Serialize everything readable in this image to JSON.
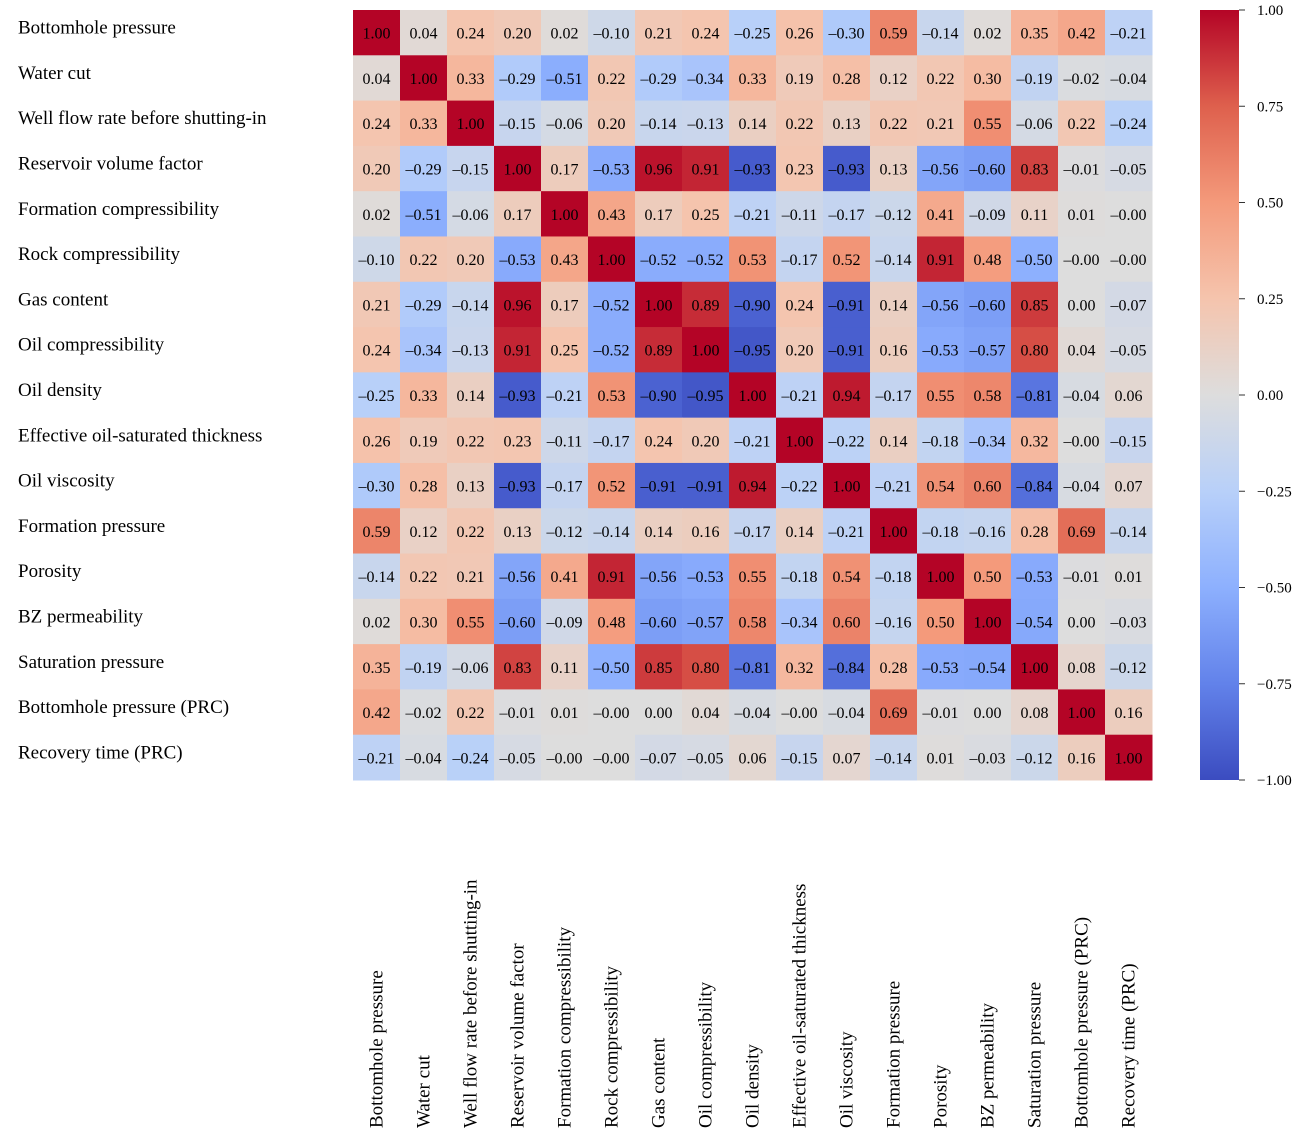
{
  "chart_data": {
    "type": "heatmap",
    "title": "",
    "labels": [
      "Bottomhole pressure",
      "Water cut",
      "Well flow rate before shutting-in",
      "Reservoir volume factor",
      "Formation compressibility",
      "Rock compressibility",
      "Gas content",
      "Oil compressibility",
      "Oil density",
      "Effective oil-saturated thickness",
      "Oil viscosity",
      "Formation pressure",
      "Porosity",
      "BZ permeability",
      "Saturation pressure",
      "Bottomhole pressure (PRC)",
      "Recovery time (PRC)"
    ],
    "matrix": [
      [
        1.0,
        0.04,
        0.24,
        0.2,
        0.02,
        -0.1,
        0.21,
        0.24,
        -0.25,
        0.26,
        -0.3,
        0.59,
        -0.14,
        0.02,
        0.35,
        0.42,
        -0.21
      ],
      [
        0.04,
        1.0,
        0.33,
        -0.29,
        -0.51,
        0.22,
        -0.29,
        -0.34,
        0.33,
        0.19,
        0.28,
        0.12,
        0.22,
        0.3,
        -0.19,
        -0.02,
        -0.04
      ],
      [
        0.24,
        0.33,
        1.0,
        -0.15,
        -0.06,
        0.2,
        -0.14,
        -0.13,
        0.14,
        0.22,
        0.13,
        0.22,
        0.21,
        0.55,
        -0.06,
        0.22,
        -0.24
      ],
      [
        0.2,
        -0.29,
        -0.15,
        1.0,
        0.17,
        -0.53,
        0.96,
        0.91,
        -0.93,
        0.23,
        -0.93,
        0.13,
        -0.56,
        -0.6,
        0.83,
        -0.01,
        -0.05
      ],
      [
        0.02,
        -0.51,
        -0.06,
        0.17,
        1.0,
        0.43,
        0.17,
        0.25,
        -0.21,
        -0.11,
        -0.17,
        -0.12,
        0.41,
        -0.09,
        0.11,
        0.01,
        -0.0
      ],
      [
        -0.1,
        0.22,
        0.2,
        -0.53,
        0.43,
        1.0,
        -0.52,
        -0.52,
        0.53,
        -0.17,
        0.52,
        -0.14,
        0.91,
        0.48,
        -0.5,
        -0.0,
        -0.0
      ],
      [
        0.21,
        -0.29,
        -0.14,
        0.96,
        0.17,
        -0.52,
        1.0,
        0.89,
        -0.9,
        0.24,
        -0.91,
        0.14,
        -0.56,
        -0.6,
        0.85,
        0.0,
        -0.07
      ],
      [
        0.24,
        -0.34,
        -0.13,
        0.91,
        0.25,
        -0.52,
        0.89,
        1.0,
        -0.95,
        0.2,
        -0.91,
        0.16,
        -0.53,
        -0.57,
        0.8,
        0.04,
        -0.05
      ],
      [
        -0.25,
        0.33,
        0.14,
        -0.93,
        -0.21,
        0.53,
        -0.9,
        -0.95,
        1.0,
        -0.21,
        0.94,
        -0.17,
        0.55,
        0.58,
        -0.81,
        -0.04,
        0.06
      ],
      [
        0.26,
        0.19,
        0.22,
        0.23,
        -0.11,
        -0.17,
        0.24,
        0.2,
        -0.21,
        1.0,
        -0.22,
        0.14,
        -0.18,
        -0.34,
        0.32,
        -0.0,
        -0.15
      ],
      [
        -0.3,
        0.28,
        0.13,
        -0.93,
        -0.17,
        0.52,
        -0.91,
        -0.91,
        0.94,
        -0.22,
        1.0,
        -0.21,
        0.54,
        0.6,
        -0.84,
        -0.04,
        0.07
      ],
      [
        0.59,
        0.12,
        0.22,
        0.13,
        -0.12,
        -0.14,
        0.14,
        0.16,
        -0.17,
        0.14,
        -0.21,
        1.0,
        -0.18,
        -0.16,
        0.28,
        0.69,
        -0.14
      ],
      [
        -0.14,
        0.22,
        0.21,
        -0.56,
        0.41,
        0.91,
        -0.56,
        -0.53,
        0.55,
        -0.18,
        0.54,
        -0.18,
        1.0,
        0.5,
        -0.53,
        -0.01,
        0.01
      ],
      [
        0.02,
        0.3,
        0.55,
        -0.6,
        -0.09,
        0.48,
        -0.6,
        -0.57,
        0.58,
        -0.34,
        0.6,
        -0.16,
        0.5,
        1.0,
        -0.54,
        0.0,
        -0.03
      ],
      [
        0.35,
        -0.19,
        -0.06,
        0.83,
        0.11,
        -0.5,
        0.85,
        0.8,
        -0.81,
        0.32,
        -0.84,
        0.28,
        -0.53,
        -0.54,
        1.0,
        0.08,
        -0.12
      ],
      [
        0.42,
        -0.02,
        0.22,
        -0.01,
        0.01,
        -0.0,
        0.0,
        0.04,
        -0.04,
        -0.0,
        -0.04,
        0.69,
        -0.01,
        0.0,
        0.08,
        1.0,
        0.16
      ],
      [
        -0.21,
        -0.04,
        -0.24,
        -0.05,
        -0.0,
        -0.0,
        -0.07,
        -0.05,
        0.06,
        -0.15,
        0.07,
        -0.14,
        0.01,
        -0.03,
        -0.12,
        0.16,
        1.0
      ]
    ],
    "value_format": "2 decimals, minus sign as en dash",
    "colormap": "coolwarm",
    "vmin": -1.0,
    "vmax": 1.0,
    "colorbar": {
      "placement": "right",
      "ticks": [
        1.0,
        0.75,
        0.5,
        0.25,
        0.0,
        -0.25,
        -0.5,
        -0.75,
        -1.0
      ],
      "tick_labels": [
        "1.00",
        "0.75",
        "0.50",
        "0.25",
        "0.00",
        "−0.25",
        "−0.50",
        "−0.75",
        "−1.00"
      ]
    },
    "xlabel": "",
    "ylabel": "",
    "x_tick_rotation": "vertical",
    "grid": false
  }
}
